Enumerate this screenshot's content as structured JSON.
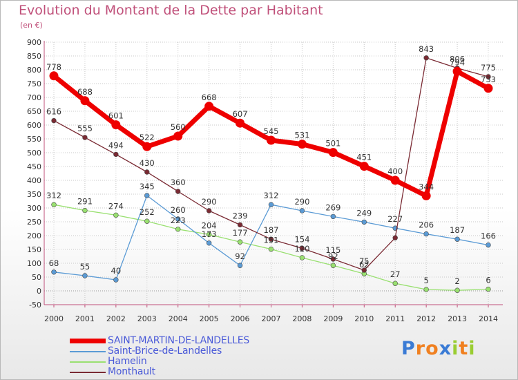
{
  "header": {
    "title": "Evolution du Montant de la Dette par Habitant",
    "subtitle": "(en €)"
  },
  "chart_data": {
    "type": "line",
    "title": "Evolution du Montant de la Dette par Habitant",
    "ylabel": "(en €)",
    "xlabel": "",
    "ylim": [
      -50,
      900
    ],
    "y_ticks": [
      -50,
      0,
      50,
      100,
      150,
      200,
      250,
      300,
      350,
      400,
      450,
      500,
      550,
      600,
      650,
      700,
      750,
      800,
      850,
      900
    ],
    "categories": [
      "2000",
      "2001",
      "2002",
      "2003",
      "2004",
      "2005",
      "2006",
      "2007",
      "2008",
      "2009",
      "2010",
      "2011",
      "2012",
      "2013",
      "2014"
    ],
    "grid": true,
    "legend_position": "bottom-left",
    "series": [
      {
        "name": "SAINT-MARTIN-DE-LANDELLES",
        "color": "#ee0000",
        "values": [
          778,
          688,
          601,
          522,
          560,
          668,
          607,
          545,
          531,
          501,
          451,
          400,
          344,
          794,
          733
        ],
        "labels": [
          "778",
          "688",
          "601",
          "522",
          "560",
          "668",
          "607",
          "545",
          "531",
          "501",
          "451",
          "400",
          "344",
          "794",
          "733"
        ]
      },
      {
        "name": "Saint-Brice-de-Landelles",
        "color": "#5b9bd5",
        "values": [
          68,
          55,
          40,
          345,
          260,
          173,
          92,
          312,
          290,
          269,
          249,
          227,
          206,
          187,
          166
        ],
        "labels": [
          "68",
          "55",
          "40",
          "345",
          "260",
          "173",
          "92",
          "312",
          "290",
          "269",
          "249",
          "227",
          "206",
          "187",
          "166"
        ]
      },
      {
        "name": "Hamelin",
        "color": "#99e070",
        "values": [
          312,
          291,
          274,
          252,
          223,
          204,
          177,
          151,
          120,
          92,
          62,
          27,
          5,
          2,
          6
        ],
        "labels": [
          "312",
          "291",
          "274",
          "252",
          "223",
          "204",
          "177",
          "151",
          "120",
          "92",
          "62",
          "27",
          "5",
          "2",
          "6"
        ]
      },
      {
        "name": "Monthault",
        "color": "#7a2a33",
        "values": [
          616,
          555,
          494,
          430,
          360,
          290,
          239,
          187,
          154,
          115,
          75,
          192,
          843,
          806,
          775
        ],
        "labels": [
          "616",
          "555",
          "494",
          "430",
          "360",
          "290",
          "239",
          "187",
          "154",
          "115",
          "75",
          "",
          "843",
          "806",
          "775"
        ]
      }
    ]
  },
  "legend": {
    "items": [
      "SAINT-MARTIN-DE-LANDELLES",
      "Saint-Brice-de-Landelles",
      "Hamelin",
      "Monthault"
    ]
  },
  "logo": {
    "text": "Proxiti",
    "letters": [
      "P",
      "r",
      "o",
      "x",
      "i",
      "t",
      "i"
    ],
    "colors": [
      "#3a7bd5",
      "#f08020",
      "#f08020",
      "#3a7bd5",
      "#9acd32",
      "#f08020",
      "#9acd32"
    ]
  }
}
